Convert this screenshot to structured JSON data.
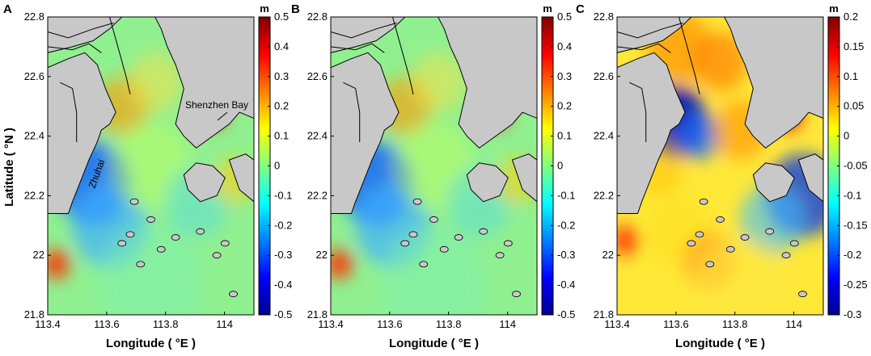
{
  "figure": {
    "ylabel": "Latitude ( °N )",
    "xlabel": "Longitude ( °E )"
  },
  "colors": {
    "land": "#c8c8c8",
    "coast": "#000000",
    "colormap": [
      "#00008f",
      "#0000ff",
      "#0080ff",
      "#00ffff",
      "#80ff80",
      "#ffff00",
      "#ff8000",
      "#ff0000",
      "#800000"
    ]
  },
  "chart_data": [
    {
      "type": "heatmap",
      "panel": "A",
      "unit_label": "m",
      "xlim": [
        113.4,
        114.1
      ],
      "ylim": [
        21.8,
        22.8
      ],
      "x_ticks": [
        "113.4",
        "113.6",
        "113.8",
        "114"
      ],
      "y_ticks": [
        "22.8",
        "22.6",
        "22.4",
        "22.2",
        "22",
        "21.8"
      ],
      "colorbar_range": [
        -0.5,
        0.5
      ],
      "colorbar_ticks": [
        "0.5",
        "0.4",
        "0.3",
        "0.2",
        "0.1",
        "0",
        "-0.1",
        "-0.2",
        "-0.3",
        "-0.4",
        "-0.5"
      ],
      "annotations": [
        "Shenzhen Bay",
        "Zhuhai"
      ]
    },
    {
      "type": "heatmap",
      "panel": "B",
      "unit_label": "m",
      "xlim": [
        113.4,
        114.1
      ],
      "ylim": [
        21.8,
        22.8
      ],
      "x_ticks": [
        "113.4",
        "113.6",
        "113.8",
        "114"
      ],
      "y_ticks": [
        "22.8",
        "22.6",
        "22.4",
        "22.2",
        "22",
        "21.8"
      ],
      "colorbar_range": [
        -0.5,
        0.5
      ],
      "colorbar_ticks": [
        "0.5",
        "0.4",
        "0.3",
        "0.2",
        "0.1",
        "0",
        "-0.1",
        "-0.2",
        "-0.3",
        "-0.4",
        "-0.5"
      ],
      "annotations": []
    },
    {
      "type": "heatmap",
      "panel": "C",
      "unit_label": "m",
      "xlim": [
        113.4,
        114.1
      ],
      "ylim": [
        21.8,
        22.8
      ],
      "x_ticks": [
        "113.4",
        "113.6",
        "113.8",
        "114"
      ],
      "y_ticks": [
        "22.8",
        "22.6",
        "22.4",
        "22.2",
        "22",
        "21.8"
      ],
      "colorbar_range": [
        -0.3,
        0.2
      ],
      "colorbar_ticks": [
        "0.2",
        "0.15",
        "0.1",
        "0.05",
        "0",
        "-0.05",
        "-0.1",
        "-0.15",
        "-0.2",
        "-0.25",
        "-0.3"
      ],
      "annotations": []
    }
  ]
}
